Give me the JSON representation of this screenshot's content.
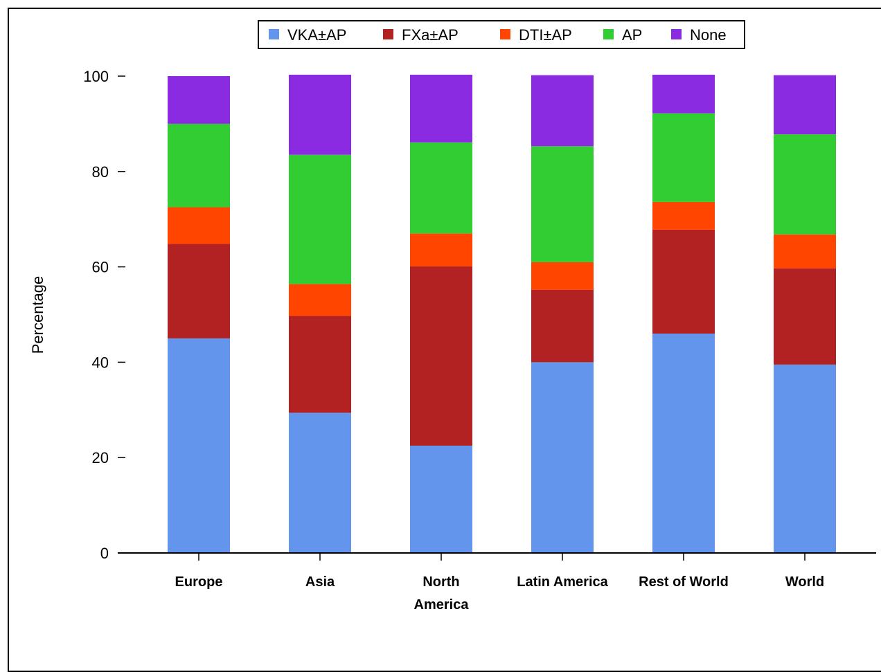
{
  "chart_data": {
    "type": "bar",
    "stacked": true,
    "title": "",
    "xlabel": "",
    "ylabel": "Percentage",
    "ylim": [
      0,
      100
    ],
    "yticks": [
      0,
      20,
      40,
      60,
      80,
      100
    ],
    "grid": false,
    "legend_position": "top",
    "categories": [
      "Europe",
      "Asia",
      "North America",
      "Latin America",
      "Rest of World",
      "World"
    ],
    "category_lines": [
      [
        "Europe"
      ],
      [
        "Asia"
      ],
      [
        "North",
        "America"
      ],
      [
        "Latin America"
      ],
      [
        "Rest of World"
      ],
      [
        "World"
      ]
    ],
    "series": [
      {
        "name": "VKA±AP",
        "color": "#6495ED",
        "values": [
          45.0,
          29.4,
          22.5,
          40.0,
          46.0,
          39.5
        ]
      },
      {
        "name": "FXa±AP",
        "color": "#B22222",
        "values": [
          19.8,
          20.3,
          37.6,
          15.2,
          21.8,
          20.2
        ]
      },
      {
        "name": "DTI±AP",
        "color": "#FF4500",
        "values": [
          7.7,
          6.7,
          6.9,
          5.8,
          5.8,
          7.1
        ]
      },
      {
        "name": "AP",
        "color": "#32CD32",
        "values": [
          17.5,
          27.1,
          19.1,
          24.3,
          18.6,
          21.0
        ]
      },
      {
        "name": "None",
        "color": "#8A2BE2",
        "values": [
          10.0,
          16.8,
          14.2,
          14.9,
          8.1,
          12.4
        ]
      }
    ]
  }
}
